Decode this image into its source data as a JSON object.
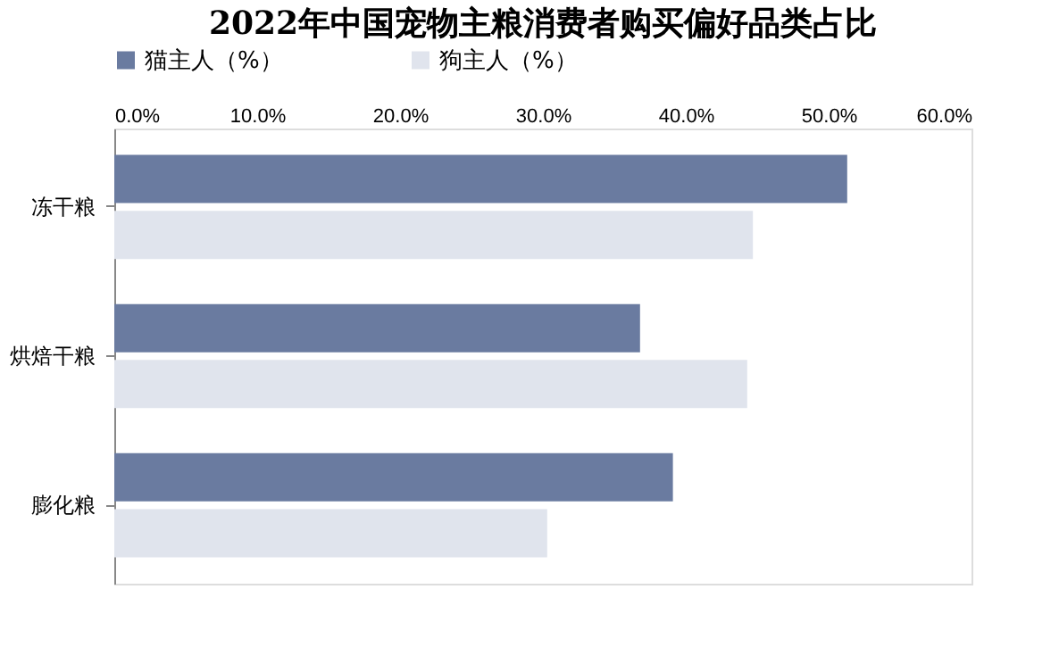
{
  "chart_data": {
    "type": "bar",
    "orientation": "horizontal",
    "title": "2022年中国宠物主粮消费者购买偏好品类占比",
    "categories": [
      "冻干粮",
      "烘焙干粮",
      "膨化粮"
    ],
    "series": [
      {
        "name": "猫主人（%）",
        "color": "#6a7ba0",
        "values": [
          51.3,
          36.8,
          39.1
        ]
      },
      {
        "name": "狗主人（%）",
        "color": "#e0e4ed",
        "values": [
          44.7,
          44.3,
          30.3
        ]
      }
    ],
    "xlim": [
      0,
      60
    ],
    "xticks": [
      {
        "value": 0,
        "label": "0.0%"
      },
      {
        "value": 10,
        "label": "10.0%"
      },
      {
        "value": 20,
        "label": "20.0%"
      },
      {
        "value": 30,
        "label": "30.0%"
      },
      {
        "value": 40,
        "label": "40.0%"
      },
      {
        "value": 50,
        "label": "50.0%"
      },
      {
        "value": 60,
        "label": "60.0%"
      }
    ],
    "grid": false,
    "legend": "top"
  }
}
